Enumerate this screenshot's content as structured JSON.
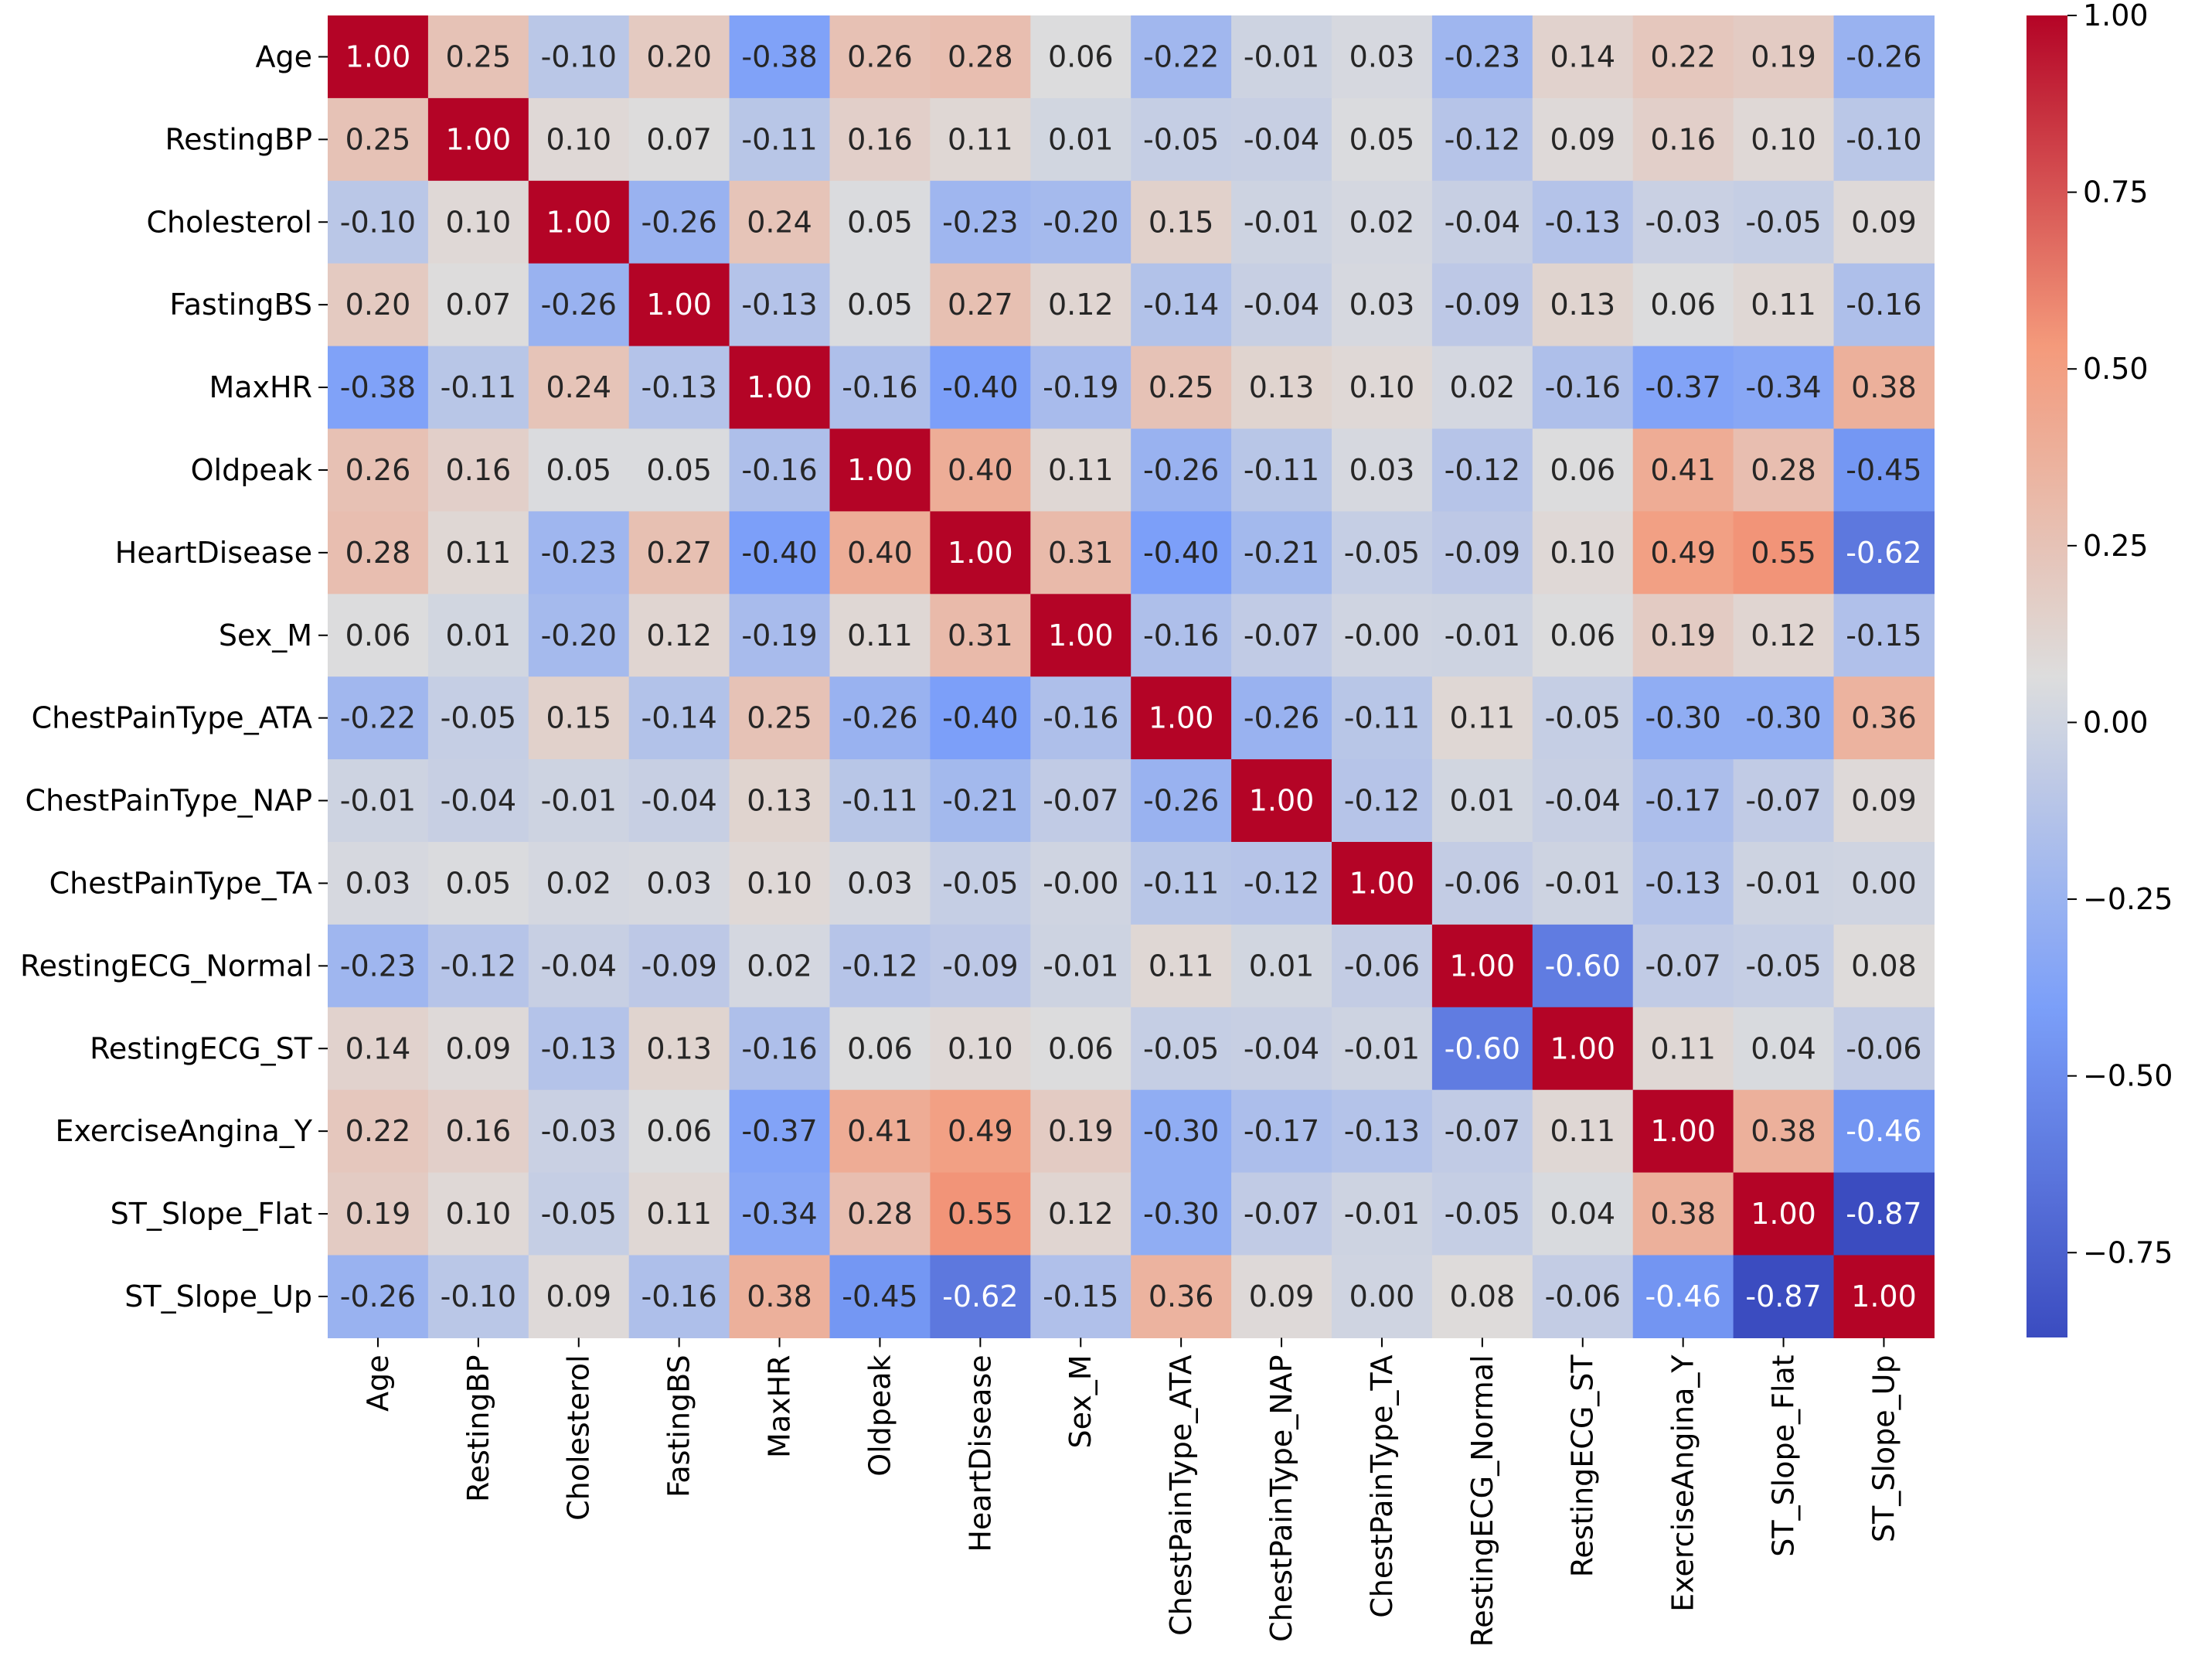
{
  "chart_data": {
    "type": "heatmap",
    "title": "",
    "xlabel": "",
    "ylabel": "",
    "labels": [
      "Age",
      "RestingBP",
      "Cholesterol",
      "FastingBS",
      "MaxHR",
      "Oldpeak",
      "HeartDisease",
      "Sex_M",
      "ChestPainType_ATA",
      "ChestPainType_NAP",
      "ChestPainType_TA",
      "RestingECG_Normal",
      "RestingECG_ST",
      "ExerciseAngina_Y",
      "ST_Slope_Flat",
      "ST_Slope_Up"
    ],
    "cell_labels": [
      [
        "1.00",
        "0.25",
        "-0.10",
        "0.20",
        "-0.38",
        "0.26",
        "0.28",
        "0.06",
        "-0.22",
        "-0.01",
        "0.03",
        "-0.23",
        "0.14",
        "0.22",
        "0.19",
        "-0.26"
      ],
      [
        "0.25",
        "1.00",
        "0.10",
        "0.07",
        "-0.11",
        "0.16",
        "0.11",
        "0.01",
        "-0.05",
        "-0.04",
        "0.05",
        "-0.12",
        "0.09",
        "0.16",
        "0.10",
        "-0.10"
      ],
      [
        "-0.10",
        "0.10",
        "1.00",
        "-0.26",
        "0.24",
        "0.05",
        "-0.23",
        "-0.20",
        "0.15",
        "-0.01",
        "0.02",
        "-0.04",
        "-0.13",
        "-0.03",
        "-0.05",
        "0.09"
      ],
      [
        "0.20",
        "0.07",
        "-0.26",
        "1.00",
        "-0.13",
        "0.05",
        "0.27",
        "0.12",
        "-0.14",
        "-0.04",
        "0.03",
        "-0.09",
        "0.13",
        "0.06",
        "0.11",
        "-0.16"
      ],
      [
        "-0.38",
        "-0.11",
        "0.24",
        "-0.13",
        "1.00",
        "-0.16",
        "-0.40",
        "-0.19",
        "0.25",
        "0.13",
        "0.10",
        "0.02",
        "-0.16",
        "-0.37",
        "-0.34",
        "0.38"
      ],
      [
        "0.26",
        "0.16",
        "0.05",
        "0.05",
        "-0.16",
        "1.00",
        "0.40",
        "0.11",
        "-0.26",
        "-0.11",
        "0.03",
        "-0.12",
        "0.06",
        "0.41",
        "0.28",
        "-0.45"
      ],
      [
        "0.28",
        "0.11",
        "-0.23",
        "0.27",
        "-0.40",
        "0.40",
        "1.00",
        "0.31",
        "-0.40",
        "-0.21",
        "-0.05",
        "-0.09",
        "0.10",
        "0.49",
        "0.55",
        "-0.62"
      ],
      [
        "0.06",
        "0.01",
        "-0.20",
        "0.12",
        "-0.19",
        "0.11",
        "0.31",
        "1.00",
        "-0.16",
        "-0.07",
        "-0.00",
        "-0.01",
        "0.06",
        "0.19",
        "0.12",
        "-0.15"
      ],
      [
        "-0.22",
        "-0.05",
        "0.15",
        "-0.14",
        "0.25",
        "-0.26",
        "-0.40",
        "-0.16",
        "1.00",
        "-0.26",
        "-0.11",
        "0.11",
        "-0.05",
        "-0.30",
        "-0.30",
        "0.36"
      ],
      [
        "-0.01",
        "-0.04",
        "-0.01",
        "-0.04",
        "0.13",
        "-0.11",
        "-0.21",
        "-0.07",
        "-0.26",
        "1.00",
        "-0.12",
        "0.01",
        "-0.04",
        "-0.17",
        "-0.07",
        "0.09"
      ],
      [
        "0.03",
        "0.05",
        "0.02",
        "0.03",
        "0.10",
        "0.03",
        "-0.05",
        "-0.00",
        "-0.11",
        "-0.12",
        "1.00",
        "-0.06",
        "-0.01",
        "-0.13",
        "-0.01",
        "0.00"
      ],
      [
        "-0.23",
        "-0.12",
        "-0.04",
        "-0.09",
        "0.02",
        "-0.12",
        "-0.09",
        "-0.01",
        "0.11",
        "0.01",
        "-0.06",
        "1.00",
        "-0.60",
        "-0.07",
        "-0.05",
        "0.08"
      ],
      [
        "0.14",
        "0.09",
        "-0.13",
        "0.13",
        "-0.16",
        "0.06",
        "0.10",
        "0.06",
        "-0.05",
        "-0.04",
        "-0.01",
        "-0.60",
        "1.00",
        "0.11",
        "0.04",
        "-0.06"
      ],
      [
        "0.22",
        "0.16",
        "-0.03",
        "0.06",
        "-0.37",
        "0.41",
        "0.49",
        "0.19",
        "-0.30",
        "-0.17",
        "-0.13",
        "-0.07",
        "0.11",
        "1.00",
        "0.38",
        "-0.46"
      ],
      [
        "0.19",
        "0.10",
        "-0.05",
        "0.11",
        "-0.34",
        "0.28",
        "0.55",
        "0.12",
        "-0.30",
        "-0.07",
        "-0.01",
        "-0.05",
        "0.04",
        "0.38",
        "1.00",
        "-0.87"
      ],
      [
        "-0.26",
        "-0.10",
        "0.09",
        "-0.16",
        "0.38",
        "-0.45",
        "-0.62",
        "-0.15",
        "0.36",
        "0.09",
        "0.00",
        "0.08",
        "-0.06",
        "-0.46",
        "-0.87",
        "1.00"
      ]
    ],
    "colorbar": {
      "min": -0.87,
      "max": 1.0,
      "ticks": [
        1.0,
        0.75,
        0.5,
        0.25,
        0.0,
        -0.25,
        -0.5,
        -0.75
      ],
      "tick_labels": [
        "1.00",
        "0.75",
        "0.50",
        "0.25",
        "0.00",
        "−0.25",
        "−0.50",
        "−0.75"
      ]
    },
    "colormap": "coolwarm",
    "colormap_stops": [
      [
        0.0,
        "#3b4cc0"
      ],
      [
        0.25,
        "#7b9ff9"
      ],
      [
        0.5,
        "#dddddd"
      ],
      [
        0.75,
        "#f49a7b"
      ],
      [
        1.0,
        "#b40426"
      ]
    ],
    "annotation_text_colors": {
      "light": "#ffffff",
      "dark": "#262626"
    }
  }
}
